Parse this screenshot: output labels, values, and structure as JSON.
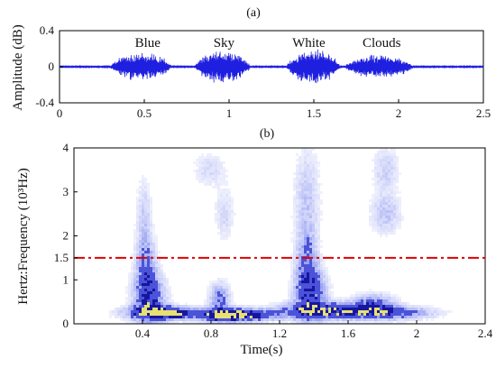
{
  "chart_data": [
    {
      "type": "line",
      "panel_label": "(a)",
      "ylabel": "Amplitude (dB)",
      "xlim": [
        0,
        2.5
      ],
      "ylim": [
        -0.4,
        0.4
      ],
      "x_ticks": [
        "0",
        "0.5",
        "1",
        "1.5",
        "2",
        "2.5"
      ],
      "y_ticks": [
        "0.4",
        "0",
        "-0.4"
      ],
      "series_color": "#1f1fe0",
      "annotations": [
        {
          "text": "Blue",
          "x": 0.52
        },
        {
          "text": "Sky",
          "x": 0.97
        },
        {
          "text": "White",
          "x": 1.47
        },
        {
          "text": "Clouds",
          "x": 1.9
        }
      ],
      "segments": [
        {
          "start": 0.3,
          "end": 0.69,
          "peak": 0.17
        },
        {
          "start": 0.8,
          "end": 1.15,
          "peak": 0.2
        },
        {
          "start": 1.34,
          "end": 1.68,
          "peak": 0.21
        },
        {
          "start": 1.68,
          "end": 2.12,
          "peak": 0.14
        }
      ]
    },
    {
      "type": "heatmap",
      "panel_label": "(b)",
      "xlabel": "Time(s)",
      "ylabel": "Hertz:Frequency  (10³Hz)",
      "xlim": [
        0,
        2.4
      ],
      "ylim": [
        0,
        4
      ],
      "x_ticks": [
        "0.4",
        "0.8",
        "1.2",
        "1.6",
        "2",
        "2.4"
      ],
      "y_ticks": [
        "0",
        "1",
        "1.5",
        "2",
        "3",
        "4"
      ],
      "threshold_line": {
        "y": 1.5,
        "color": "#e00000",
        "style": "dash-dot"
      },
      "blobs": [
        {
          "t": 0.5,
          "f": 0.25,
          "dt": 0.13,
          "df": 0.1,
          "w": 1.0
        },
        {
          "t": 0.58,
          "f": 0.23,
          "dt": 0.05,
          "df": 0.05,
          "w": 1.0
        },
        {
          "t": 0.44,
          "f": 0.55,
          "dt": 0.06,
          "df": 0.38,
          "w": 0.8
        },
        {
          "t": 0.42,
          "f": 1.3,
          "dt": 0.04,
          "df": 0.45,
          "w": 0.5
        },
        {
          "t": 0.41,
          "f": 2.4,
          "dt": 0.03,
          "df": 0.6,
          "w": 0.25
        },
        {
          "t": 0.88,
          "f": 0.2,
          "dt": 0.12,
          "df": 0.1,
          "w": 0.95
        },
        {
          "t": 1.0,
          "f": 0.2,
          "dt": 0.14,
          "df": 0.08,
          "w": 0.8
        },
        {
          "t": 0.85,
          "f": 0.55,
          "dt": 0.04,
          "df": 0.25,
          "w": 0.55
        },
        {
          "t": 0.79,
          "f": 3.5,
          "dt": 0.06,
          "df": 0.25,
          "w": 0.2
        },
        {
          "t": 0.88,
          "f": 2.5,
          "dt": 0.04,
          "df": 0.4,
          "w": 0.2
        },
        {
          "t": 1.45,
          "f": 0.3,
          "dt": 0.16,
          "df": 0.12,
          "w": 1.0
        },
        {
          "t": 1.38,
          "f": 0.7,
          "dt": 0.06,
          "df": 0.4,
          "w": 0.75
        },
        {
          "t": 1.36,
          "f": 1.4,
          "dt": 0.04,
          "df": 0.5,
          "w": 0.45
        },
        {
          "t": 1.36,
          "f": 2.8,
          "dt": 0.05,
          "df": 0.8,
          "w": 0.28
        },
        {
          "t": 1.8,
          "f": 0.25,
          "dt": 0.18,
          "df": 0.1,
          "w": 0.85
        },
        {
          "t": 1.75,
          "f": 0.45,
          "dt": 0.08,
          "df": 0.15,
          "w": 0.6
        },
        {
          "t": 1.82,
          "f": 2.5,
          "dt": 0.06,
          "df": 0.3,
          "w": 0.3
        },
        {
          "t": 1.82,
          "f": 3.5,
          "dt": 0.05,
          "df": 0.35,
          "w": 0.25
        }
      ]
    }
  ]
}
